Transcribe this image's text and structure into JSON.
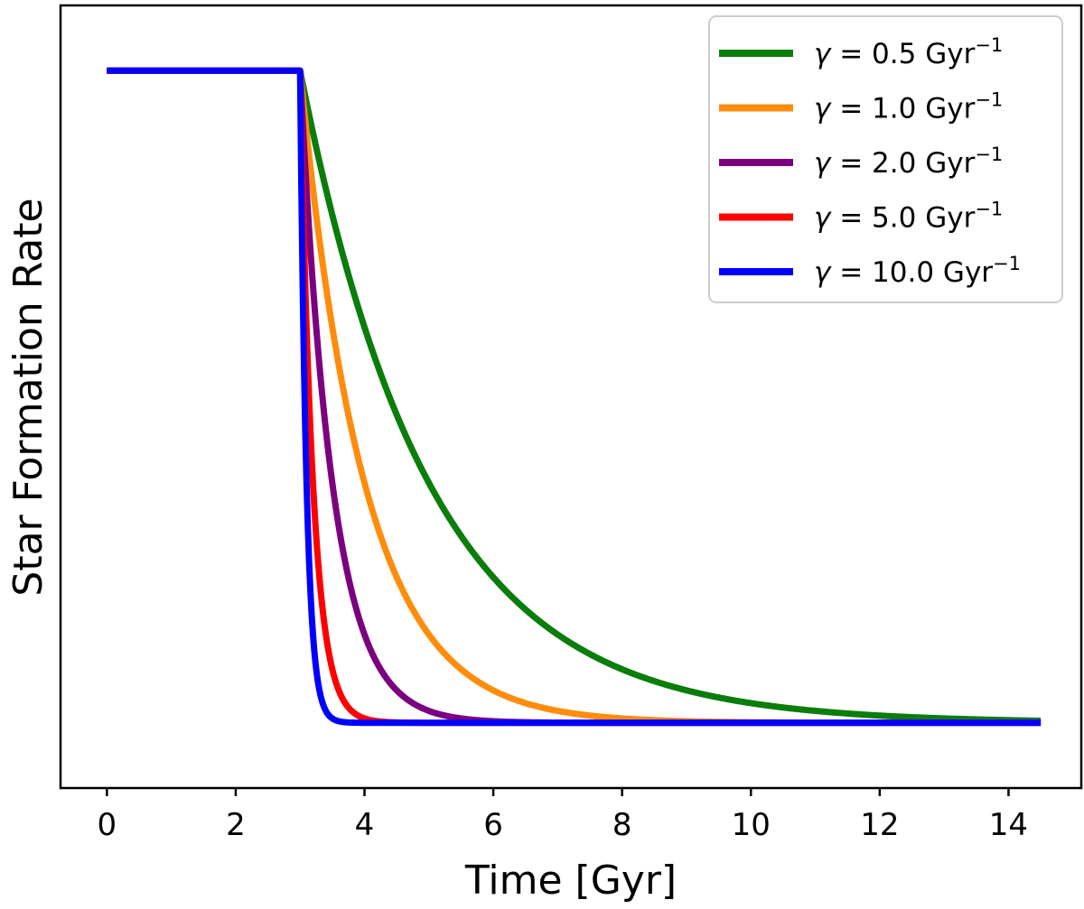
{
  "chart_data": {
    "type": "line",
    "title": "",
    "xlabel": "Time [Gyr]",
    "ylabel": "Star Formation Rate",
    "xlim": [
      -0.72,
      15.13
    ],
    "ylim": [
      -0.1,
      1.1
    ],
    "xticks": [
      0,
      2,
      4,
      6,
      8,
      10,
      12,
      14
    ],
    "xtick_labels": [
      "0",
      "2",
      "4",
      "6",
      "8",
      "10",
      "12",
      "14"
    ],
    "yticks_shown": false,
    "grid": false,
    "legend_position": "top-right",
    "model": {
      "t_start": 0,
      "t_quench": 3.0,
      "t_end": 14.5,
      "sfr_before_quench": 1.0,
      "sfr_floor": 0.0
    },
    "series": [
      {
        "name": "γ = 0.5 Gyr⁻¹",
        "gamma": 0.5,
        "color": "#0a7d0a"
      },
      {
        "name": "γ = 1.0 Gyr⁻¹",
        "gamma": 1.0,
        "color": "#ff8c0a"
      },
      {
        "name": "γ = 2.0 Gyr⁻¹",
        "gamma": 2.0,
        "color": "#7b0080"
      },
      {
        "name": "γ = 5.0 Gyr⁻¹",
        "gamma": 5.0,
        "color": "#ff0000"
      },
      {
        "name": "γ = 10.0 Gyr⁻¹",
        "gamma": 10.0,
        "color": "#0000ff"
      }
    ],
    "legend": {
      "symbol": "γ",
      "equals": "=",
      "values": [
        "0.5",
        "1.0",
        "2.0",
        "5.0",
        "10.0"
      ],
      "unit": "Gyr",
      "exponent": "−1"
    },
    "colors": {
      "axes": "#000000",
      "background": "#ffffff",
      "legend_border": "#cccccc"
    }
  }
}
